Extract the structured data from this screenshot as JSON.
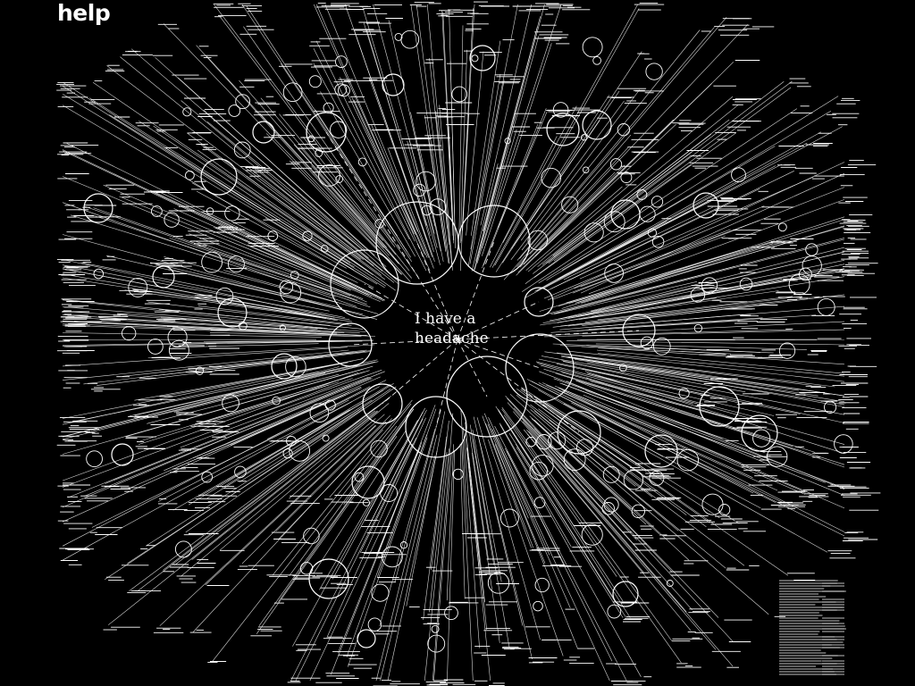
{
  "title": "help",
  "center": {
    "line1": "I have a",
    "line2": "headache"
  },
  "colors": {
    "background": "#000000",
    "foreground": "#ffffff"
  }
}
